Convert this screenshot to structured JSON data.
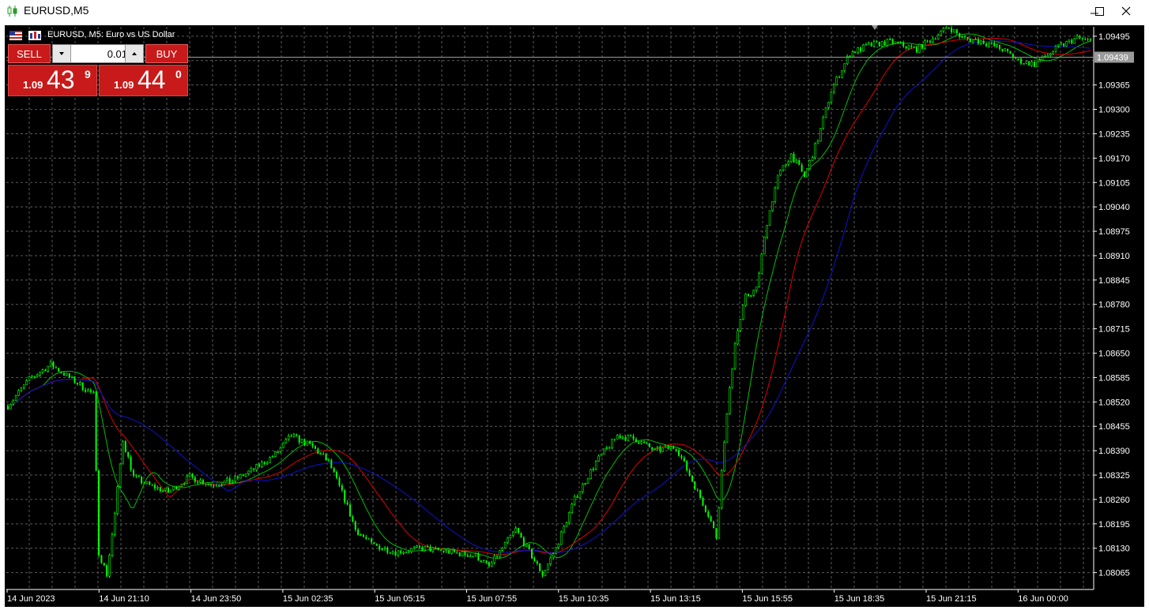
{
  "window": {
    "title": "EURUSD,M5",
    "icon": "candlestick-chart-icon",
    "controls": [
      "minimize-icon",
      "maximize-icon",
      "close-icon"
    ]
  },
  "chart_header": {
    "text": "EURUSD, M5:  Euro vs US Dollar"
  },
  "trade_panel": {
    "sell_label": "SELL",
    "buy_label": "BUY",
    "lot_value": "0.01",
    "sell_price": {
      "prefix": "1.09",
      "big": "43",
      "sup": "9"
    },
    "buy_price": {
      "prefix": "1.09",
      "big": "44",
      "sup": "0"
    }
  },
  "price_axis": {
    "labels": [
      "1.09495",
      "1.09365",
      "1.09300",
      "1.09235",
      "1.09170",
      "1.09105",
      "1.09040",
      "1.08975",
      "1.08910",
      "1.08845",
      "1.08780",
      "1.08715",
      "1.08650",
      "1.08585",
      "1.08520",
      "1.08455",
      "1.08390",
      "1.08325",
      "1.08260",
      "1.08195",
      "1.08130",
      "1.08065"
    ],
    "current_price": "1.09439"
  },
  "time_axis": {
    "labels": [
      "14 Jun 2023",
      "14 Jun 21:10",
      "14 Jun 23:50",
      "15 Jun 02:35",
      "15 Jun 05:15",
      "15 Jun 07:55",
      "15 Jun 10:35",
      "15 Jun 13:15",
      "15 Jun 15:55",
      "15 Jun 18:35",
      "15 Jun 21:15",
      "16 Jun 00:00"
    ]
  },
  "colors": {
    "background": "#000000",
    "grid": "#5a5a5a",
    "candles": "#00ff00",
    "ma_fast": "#00c000",
    "ma_mid": "#e00000",
    "ma_slow": "#1010d0",
    "axis_text": "#ffffff",
    "panel_red": "#c81a1a"
  },
  "chart_data": {
    "type": "line",
    "symbol": "EURUSD",
    "timeframe": "M5",
    "ylim": [
      1.0802,
      1.0952
    ],
    "x_index_range": [
      0,
      405
    ],
    "price_path": [
      [
        0,
        1.0851
      ],
      [
        8,
        1.0858
      ],
      [
        16,
        1.0862
      ],
      [
        24,
        1.0858
      ],
      [
        32,
        1.0854
      ],
      [
        34,
        1.0812
      ],
      [
        37,
        1.0806
      ],
      [
        40,
        1.0822
      ],
      [
        43,
        1.0842
      ],
      [
        47,
        1.0832
      ],
      [
        52,
        1.083
      ],
      [
        60,
        1.0828
      ],
      [
        68,
        1.0832
      ],
      [
        76,
        1.083
      ],
      [
        84,
        1.0831
      ],
      [
        92,
        1.0834
      ],
      [
        100,
        1.0838
      ],
      [
        106,
        1.0843
      ],
      [
        114,
        1.084
      ],
      [
        120,
        1.0836
      ],
      [
        126,
        1.0826
      ],
      [
        130,
        1.0818
      ],
      [
        136,
        1.0814
      ],
      [
        145,
        1.0812
      ],
      [
        155,
        1.0813
      ],
      [
        165,
        1.0812
      ],
      [
        175,
        1.0811
      ],
      [
        180,
        1.0808
      ],
      [
        185,
        1.0813
      ],
      [
        190,
        1.0818
      ],
      [
        195,
        1.0812
      ],
      [
        200,
        1.0806
      ],
      [
        205,
        1.0813
      ],
      [
        212,
        1.0826
      ],
      [
        220,
        1.0836
      ],
      [
        228,
        1.0843
      ],
      [
        235,
        1.0842
      ],
      [
        242,
        1.0839
      ],
      [
        250,
        1.084
      ],
      [
        256,
        1.0831
      ],
      [
        262,
        1.0822
      ],
      [
        265,
        1.0816
      ],
      [
        268,
        1.0842
      ],
      [
        272,
        1.0868
      ],
      [
        276,
        1.088
      ],
      [
        280,
        1.0882
      ],
      [
        284,
        1.09
      ],
      [
        288,
        1.0912
      ],
      [
        293,
        1.0918
      ],
      [
        298,
        1.0912
      ],
      [
        303,
        1.0922
      ],
      [
        308,
        1.0935
      ],
      [
        315,
        1.0945
      ],
      [
        322,
        1.0947
      ],
      [
        330,
        1.0948
      ],
      [
        340,
        1.0946
      ],
      [
        346,
        1.0949
      ],
      [
        352,
        1.0952
      ],
      [
        357,
        1.0949
      ],
      [
        365,
        1.0948
      ],
      [
        372,
        1.0946
      ],
      [
        378,
        1.0943
      ],
      [
        384,
        1.0942
      ],
      [
        388,
        1.0944
      ],
      [
        394,
        1.0947
      ],
      [
        400,
        1.0949
      ],
      [
        405,
        1.0948
      ]
    ],
    "series": [
      {
        "name": "",
        "color": "#00c000",
        "period": 14
      },
      {
        "name": "",
        "color": "#e00000",
        "period": 28
      },
      {
        "name": "",
        "color": "#1010d0",
        "period": 50
      }
    ]
  }
}
